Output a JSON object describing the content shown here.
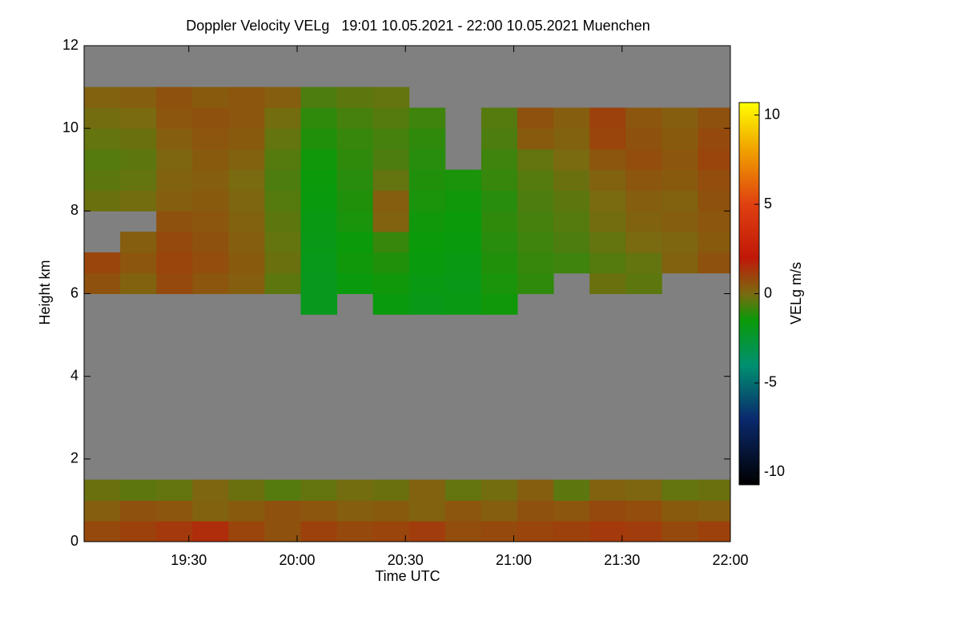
{
  "chart_data": {
    "type": "heatmap",
    "title": "Doppler Velocity VELg   19:01 10.05.2021 - 22:00 10.05.2021 Muenchen",
    "x_label": "Time UTC",
    "y_label": "Height km",
    "colorbar_label": "VELg m/s",
    "xlim": [
      1141,
      1320
    ],
    "xticks": [
      {
        "value": 1170,
        "label": "19:30"
      },
      {
        "value": 1200,
        "label": "20:00"
      },
      {
        "value": 1230,
        "label": "20:30"
      },
      {
        "value": 1260,
        "label": "21:00"
      },
      {
        "value": 1290,
        "label": "21:30"
      },
      {
        "value": 1320,
        "label": "22:00"
      }
    ],
    "ylim": [
      0,
      12
    ],
    "yticks": [
      0,
      2,
      4,
      6,
      8,
      10,
      12
    ],
    "clim": [
      -10.7,
      10.7
    ],
    "cticks": [
      -10,
      -5,
      0,
      5,
      10
    ],
    "nodata_color": "#808080",
    "colormap": [
      {
        "value": -10.7,
        "color": "#000000"
      },
      {
        "value": -7,
        "color": "#0a2a6e"
      },
      {
        "value": -4,
        "color": "#009070"
      },
      {
        "value": -1.5,
        "color": "#0a9a0a"
      },
      {
        "value": 0,
        "color": "#7a6a10"
      },
      {
        "value": 2,
        "color": "#c01808"
      },
      {
        "value": 5,
        "color": "#e04010"
      },
      {
        "value": 8,
        "color": "#f0a000"
      },
      {
        "value": 10.7,
        "color": "#ffff00"
      }
    ],
    "xbins": [
      1141,
      1151,
      1161,
      1171,
      1181,
      1191,
      1201,
      1211,
      1221,
      1231,
      1241,
      1251,
      1261,
      1271,
      1281,
      1291,
      1301,
      1311,
      1320
    ],
    "ybins": [
      0,
      0.5,
      1,
      1.5,
      2,
      2.5,
      3,
      3.5,
      4,
      4.5,
      5,
      5.5,
      6,
      6.5,
      7,
      7.5,
      8,
      8.5,
      9,
      9.5,
      10,
      10.5,
      11,
      11.5,
      12
    ],
    "z": [
      [
        0.8,
        1.0,
        1.2,
        1.5,
        0.9,
        0.6,
        1.0,
        0.8,
        0.9,
        1.1,
        0.7,
        0.8,
        0.9,
        1.0,
        1.2,
        1.1,
        0.8,
        1.0
      ],
      [
        0.3,
        0.6,
        0.5,
        0.2,
        0.4,
        0.6,
        0.5,
        0.3,
        0.4,
        0.2,
        0.5,
        0.3,
        0.6,
        0.5,
        0.8,
        0.7,
        0.4,
        0.3
      ],
      [
        -0.2,
        -0.4,
        -0.3,
        0.1,
        -0.2,
        -0.5,
        -0.3,
        -0.1,
        -0.2,
        0.2,
        -0.3,
        -0.1,
        0.3,
        -0.4,
        0.2,
        0.1,
        -0.3,
        -0.2
      ],
      [
        null,
        null,
        null,
        null,
        null,
        null,
        null,
        null,
        null,
        null,
        null,
        null,
        null,
        null,
        null,
        null,
        null,
        null
      ],
      [
        null,
        null,
        null,
        null,
        null,
        null,
        null,
        null,
        null,
        null,
        null,
        null,
        null,
        null,
        null,
        null,
        null,
        null
      ],
      [
        null,
        null,
        null,
        null,
        null,
        null,
        null,
        null,
        null,
        null,
        null,
        null,
        null,
        null,
        null,
        null,
        null,
        null
      ],
      [
        null,
        null,
        null,
        null,
        null,
        null,
        null,
        null,
        null,
        null,
        null,
        null,
        null,
        null,
        null,
        null,
        null,
        null
      ],
      [
        null,
        null,
        null,
        null,
        null,
        null,
        null,
        null,
        null,
        null,
        null,
        null,
        null,
        null,
        null,
        null,
        null,
        null
      ],
      [
        null,
        null,
        null,
        null,
        null,
        null,
        null,
        null,
        null,
        null,
        null,
        null,
        null,
        null,
        null,
        null,
        null,
        null
      ],
      [
        null,
        null,
        null,
        null,
        null,
        null,
        null,
        null,
        null,
        null,
        null,
        null,
        null,
        null,
        null,
        null,
        null,
        null
      ],
      [
        null,
        null,
        null,
        null,
        null,
        null,
        null,
        null,
        null,
        null,
        null,
        null,
        null,
        null,
        null,
        null,
        null,
        null
      ],
      [
        null,
        null,
        null,
        null,
        null,
        null,
        -2.0,
        null,
        -1.6,
        -1.8,
        -1.7,
        -1.4,
        null,
        null,
        null,
        null,
        null,
        null
      ],
      [
        0.6,
        0.2,
        0.8,
        0.5,
        0.3,
        -0.4,
        -2.0,
        -1.6,
        -1.4,
        -1.7,
        -1.8,
        -1.3,
        -1.0,
        null,
        -0.2,
        -0.4,
        null,
        null
      ],
      [
        0.9,
        0.5,
        0.9,
        0.7,
        0.4,
        -0.2,
        -1.9,
        -1.4,
        -1.2,
        -1.6,
        -1.7,
        -1.2,
        -0.9,
        -0.8,
        -0.5,
        -0.3,
        0.2,
        0.6
      ],
      [
        null,
        0.3,
        0.8,
        0.6,
        0.3,
        -0.3,
        -1.8,
        -1.5,
        -0.9,
        -1.5,
        -1.6,
        -1.1,
        -0.8,
        -0.6,
        -0.3,
        0,
        0.1,
        0.4
      ],
      [
        null,
        null,
        0.6,
        0.5,
        0.2,
        -0.4,
        -1.7,
        -1.3,
        0.2,
        -1.4,
        -1.5,
        -1.0,
        -0.7,
        -0.5,
        -0.1,
        0.2,
        0.3,
        0.5
      ],
      [
        -0.2,
        -0.1,
        0.3,
        0.4,
        0.1,
        -0.5,
        -1.6,
        -1.2,
        0.3,
        -1.3,
        -1.4,
        -1.1,
        -0.6,
        -0.4,
        0,
        0.3,
        0.2,
        0.6
      ],
      [
        -0.4,
        -0.3,
        0.2,
        0.3,
        0,
        -0.6,
        -1.5,
        -1.1,
        -0.3,
        -1.2,
        -1.3,
        -0.9,
        -0.5,
        -0.2,
        0.2,
        0.5,
        0.4,
        0.7
      ],
      [
        -0.5,
        -0.4,
        0.1,
        0.4,
        0.2,
        -0.5,
        -1.4,
        -1.0,
        -0.6,
        -1.1,
        null,
        -0.8,
        -0.3,
        0,
        0.5,
        0.7,
        0.5,
        0.9
      ],
      [
        -0.3,
        -0.2,
        0.3,
        0.5,
        0.4,
        -0.3,
        -1.2,
        -0.9,
        -0.7,
        -1.0,
        null,
        -0.6,
        0.4,
        0.2,
        0.9,
        0.6,
        0.4,
        0.8
      ],
      [
        -0.1,
        0,
        0.5,
        0.6,
        0.5,
        -0.1,
        -1.0,
        -0.7,
        -0.5,
        -0.8,
        null,
        -0.5,
        0.6,
        0.3,
        1.0,
        0.5,
        0.3,
        0.6
      ],
      [
        0.2,
        0.3,
        0.6,
        0.4,
        0.5,
        0.3,
        -0.6,
        -0.4,
        -0.3,
        null,
        null,
        null,
        null,
        null,
        null,
        null,
        null,
        null
      ],
      [
        null,
        null,
        null,
        null,
        null,
        null,
        null,
        null,
        null,
        null,
        null,
        null,
        null,
        null,
        null,
        null,
        null,
        null
      ],
      [
        null,
        null,
        null,
        null,
        null,
        null,
        null,
        null,
        null,
        null,
        null,
        null,
        null,
        null,
        null,
        null,
        null,
        null
      ]
    ]
  }
}
